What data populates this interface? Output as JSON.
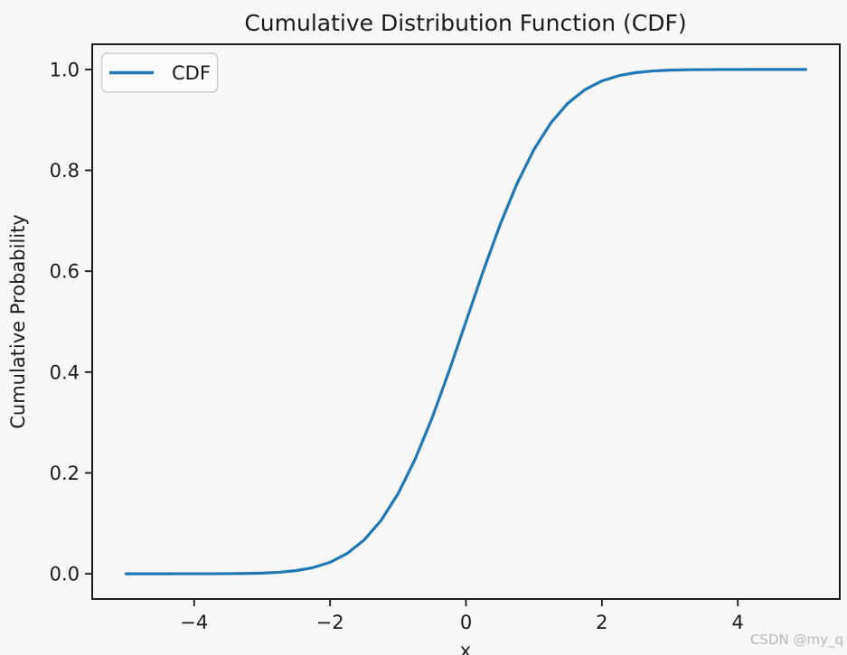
{
  "figure": {
    "watermark": "CSDN @my_q"
  },
  "colors": {
    "line": "#1f77b4",
    "background": "#f7f7f7",
    "text": "#1a1a1a",
    "spine": "#1a1a1a",
    "watermark": "#b9b9be",
    "legend_border": "#cbcbcb",
    "legend_background": "#fcfcfc"
  },
  "chart_data": {
    "type": "line",
    "title": "Cumulative Distribution Function (CDF)",
    "xlabel": "x",
    "ylabel": "Cumulative Probability",
    "xlim": [
      -5.5,
      5.5
    ],
    "ylim": [
      -0.05,
      1.05
    ],
    "grid": false,
    "x_ticks": {
      "values": [
        -4,
        -2,
        0,
        2,
        4
      ],
      "labels": [
        "−4",
        "−2",
        "0",
        "2",
        "4"
      ]
    },
    "y_ticks": {
      "values": [
        0.0,
        0.2,
        0.4,
        0.6,
        0.8,
        1.0
      ],
      "labels": [
        "0.0",
        "0.2",
        "0.4",
        "0.6",
        "0.8",
        "1.0"
      ]
    },
    "legend": {
      "position": "upper left",
      "entries": [
        {
          "label": "CDF",
          "color": "#1f77b4"
        }
      ]
    },
    "series": [
      {
        "name": "CDF",
        "color": "#1f77b4",
        "x": [
          -5.0,
          -4.75,
          -4.5,
          -4.25,
          -4.0,
          -3.75,
          -3.5,
          -3.25,
          -3.0,
          -2.75,
          -2.5,
          -2.25,
          -2.0,
          -1.75,
          -1.5,
          -1.25,
          -1.0,
          -0.75,
          -0.5,
          -0.25,
          0.0,
          0.25,
          0.5,
          0.75,
          1.0,
          1.25,
          1.5,
          1.75,
          2.0,
          2.25,
          2.5,
          2.75,
          3.0,
          3.25,
          3.5,
          3.75,
          4.0,
          4.25,
          4.5,
          4.75,
          5.0
        ],
        "y": [
          0.0,
          1e-06,
          3.4e-06,
          1.07e-05,
          3.17e-05,
          8.84e-05,
          0.000233,
          0.000577,
          0.00135,
          0.00298,
          0.00621,
          0.01222,
          0.02275,
          0.04006,
          0.06681,
          0.10565,
          0.15866,
          0.22663,
          0.30854,
          0.40129,
          0.5,
          0.59871,
          0.69146,
          0.77337,
          0.84134,
          0.89435,
          0.93319,
          0.95994,
          0.97725,
          0.98778,
          0.99379,
          0.99702,
          0.99865,
          0.99942,
          0.99977,
          0.99991,
          0.99997,
          0.99999,
          1.0,
          1.0,
          1.0
        ]
      }
    ]
  }
}
